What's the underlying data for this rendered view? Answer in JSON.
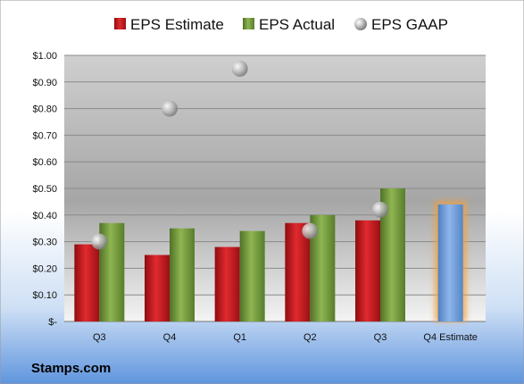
{
  "chart_data": {
    "type": "bar",
    "categories": [
      "Q3",
      "Q4",
      "Q1",
      "Q2",
      "Q3",
      "Q4 Estimate"
    ],
    "series": [
      {
        "name": "EPS Estimate",
        "kind": "bar",
        "color": "#c8161d",
        "values": [
          0.29,
          0.25,
          0.28,
          0.37,
          0.38,
          null
        ]
      },
      {
        "name": "EPS Actual",
        "kind": "bar",
        "color": "#6f9a3a",
        "values": [
          0.37,
          0.35,
          0.34,
          0.4,
          0.5,
          null
        ]
      },
      {
        "name": "EPS GAAP",
        "kind": "scatter",
        "color": "#b8b8b8",
        "values": [
          0.3,
          0.8,
          0.95,
          0.34,
          0.42,
          null
        ]
      }
    ],
    "highlight": {
      "category": "Q4 Estimate",
      "value": 0.44,
      "color": "#6f9fd8",
      "glow": "#f0a040"
    },
    "yticks": [
      "$-",
      "$0.10",
      "$0.20",
      "$0.30",
      "$0.40",
      "$0.50",
      "$0.60",
      "$0.70",
      "$0.80",
      "$0.90",
      "$1.00"
    ],
    "ylim": [
      0,
      1.0
    ],
    "grid": true,
    "legend_position": "top"
  },
  "source": "Stamps.com"
}
